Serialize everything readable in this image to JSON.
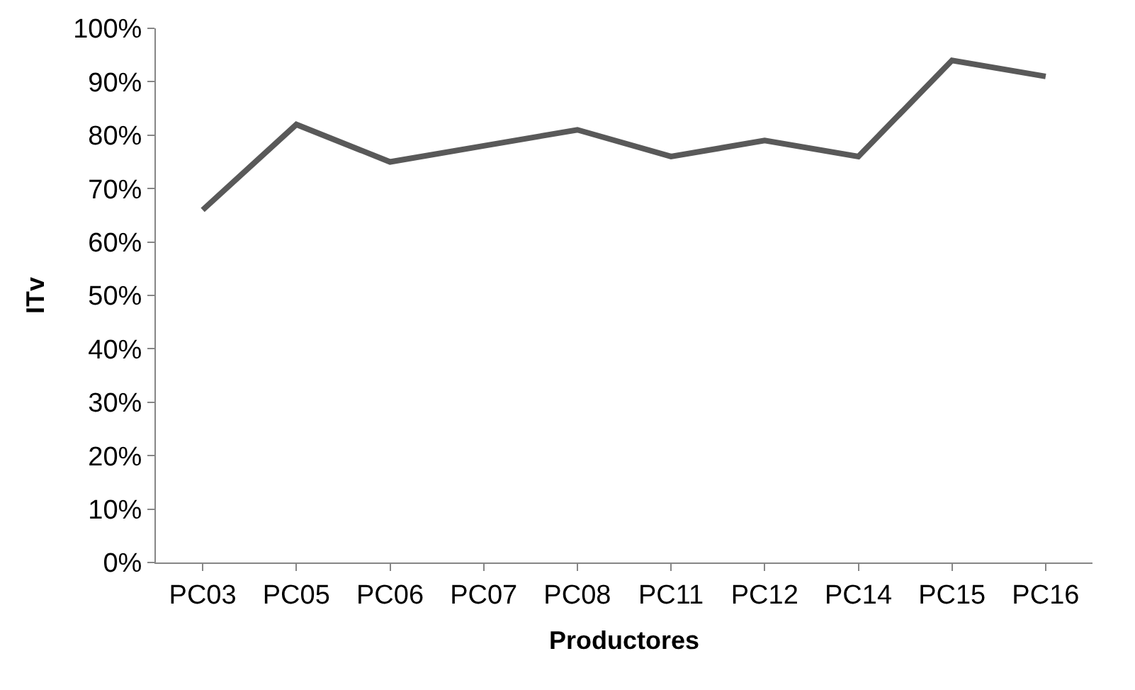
{
  "chart_data": {
    "type": "line",
    "xlabel": "Productores",
    "ylabel": "ITv",
    "categories": [
      "PC03",
      "PC05",
      "PC06",
      "PC07",
      "PC08",
      "PC11",
      "PC12",
      "PC14",
      "PC15",
      "PC16"
    ],
    "series": [
      {
        "color": "#595959",
        "values": [
          66,
          82,
          75,
          78,
          81,
          76,
          79,
          76,
          94,
          91
        ]
      }
    ],
    "ylim": [
      0,
      100
    ],
    "yticks": [
      {
        "value": 0,
        "label": "0%"
      },
      {
        "value": 10,
        "label": "10%"
      },
      {
        "value": 20,
        "label": "20%"
      },
      {
        "value": 30,
        "label": "30%"
      },
      {
        "value": 40,
        "label": "40%"
      },
      {
        "value": 50,
        "label": "50%"
      },
      {
        "value": 60,
        "label": "60%"
      },
      {
        "value": 70,
        "label": "70%"
      },
      {
        "value": 80,
        "label": "80%"
      },
      {
        "value": 90,
        "label": "90%"
      },
      {
        "value": 100,
        "label": "100%"
      }
    ],
    "legend": false,
    "marker": "none",
    "line_style": "solid"
  }
}
